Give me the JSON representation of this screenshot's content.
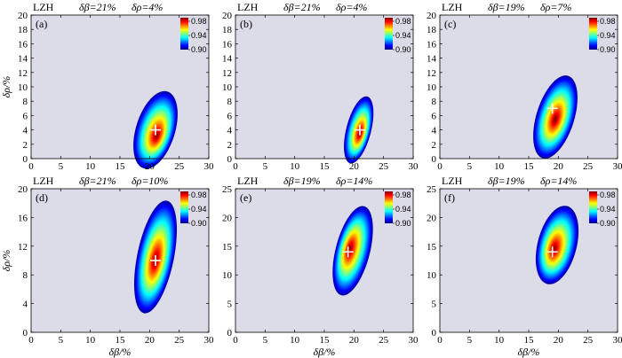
{
  "chart_data": {
    "type": "heatmap",
    "colors": {
      "background": "#dcdbe8",
      "marker": "#ffffff",
      "colormap": [
        "#00007f",
        "#0000ff",
        "#007fff",
        "#00ffff",
        "#7fff7f",
        "#ffff00",
        "#ff7f00",
        "#ff0000",
        "#7f0000"
      ]
    },
    "colorbar": {
      "ticks": [
        "0.98",
        "0.94",
        "0.90"
      ],
      "range": [
        0.9,
        0.99
      ]
    },
    "x_axis_label": "δβ/%",
    "y_axis_label": "δρ/%",
    "panels": [
      {
        "id": "a",
        "letter": "(a)",
        "station": "LZH",
        "header_beta": "δβ=21%",
        "header_rho": "δρ=4%",
        "best_beta": 21,
        "best_rho": 4,
        "xlim": [
          0,
          30
        ],
        "ylim": [
          0,
          20
        ],
        "xticks": [
          "0",
          "5",
          "10",
          "15",
          "20",
          "25",
          "30"
        ],
        "yticks": [
          "0",
          "2",
          "4",
          "6",
          "8",
          "10",
          "12",
          "14",
          "16",
          "18",
          "20"
        ],
        "show_ylabel": true,
        "show_xlabel": false,
        "blob": {
          "cx": 21,
          "cy": 4,
          "rx": 3.3,
          "ry": 5.6,
          "rot": 0.3,
          "hx": 21.2,
          "hy": 3.2
        }
      },
      {
        "id": "b",
        "letter": "(b)",
        "station": "LZH",
        "header_beta": "δβ=21%",
        "header_rho": "δρ=4%",
        "best_beta": 21,
        "best_rho": 4,
        "xlim": [
          0,
          30
        ],
        "ylim": [
          0,
          20
        ],
        "xticks": [
          "0",
          "5",
          "10",
          "15",
          "20",
          "25",
          "30"
        ],
        "yticks": [
          "0",
          "2",
          "4",
          "6",
          "8",
          "10",
          "12",
          "14",
          "16",
          "18",
          "20"
        ],
        "show_ylabel": false,
        "show_xlabel": false,
        "blob": {
          "cx": 20.8,
          "cy": 4,
          "rx": 2.1,
          "ry": 4.8,
          "rot": 0.25,
          "hx": 21,
          "hy": 3.5
        }
      },
      {
        "id": "c",
        "letter": "(c)",
        "station": "LZH",
        "header_beta": "δβ=19%",
        "header_rho": "δρ=7%",
        "best_beta": 19,
        "best_rho": 7,
        "xlim": [
          0,
          30
        ],
        "ylim": [
          0,
          20
        ],
        "xticks": [
          "0",
          "5",
          "10",
          "15",
          "20",
          "25",
          "30"
        ],
        "yticks": [
          "0",
          "2",
          "4",
          "6",
          "8",
          "10",
          "12",
          "14",
          "16",
          "18",
          "20"
        ],
        "show_ylabel": false,
        "show_xlabel": false,
        "blob": {
          "cx": 19.5,
          "cy": 5.8,
          "rx": 3.2,
          "ry": 6.0,
          "rot": 0.3,
          "hx": 19.5,
          "hy": 5.5
        }
      },
      {
        "id": "d",
        "letter": "(d)",
        "station": "LZH",
        "header_beta": "δβ=21%",
        "header_rho": "δρ=10%",
        "best_beta": 21,
        "best_rho": 10,
        "xlim": [
          0,
          30
        ],
        "ylim": [
          0,
          20
        ],
        "xticks": [
          "0",
          "5",
          "10",
          "15",
          "20",
          "25",
          "30"
        ],
        "yticks": [
          "0",
          "4",
          "8",
          "12",
          "16",
          "20"
        ],
        "show_ylabel": true,
        "show_xlabel": true,
        "blob": {
          "cx": 21,
          "cy": 10.5,
          "rx": 3.1,
          "ry": 8.0,
          "rot": 0.2,
          "hx": 21,
          "hy": 10
        }
      },
      {
        "id": "e",
        "letter": "(e)",
        "station": "LZH",
        "header_beta": "δβ=19%",
        "header_rho": "δρ=14%",
        "best_beta": 19,
        "best_rho": 14,
        "xlim": [
          0,
          30
        ],
        "ylim": [
          0,
          25
        ],
        "xticks": [
          "0",
          "5",
          "10",
          "15",
          "20",
          "25",
          "30"
        ],
        "yticks": [
          "0",
          "5",
          "10",
          "15",
          "20",
          "25"
        ],
        "show_ylabel": false,
        "show_xlabel": true,
        "blob": {
          "cx": 19.8,
          "cy": 14.2,
          "rx": 2.9,
          "ry": 8.0,
          "rot": 0.25,
          "hx": 19.3,
          "hy": 14.5
        }
      },
      {
        "id": "f",
        "letter": "(f)",
        "station": "LZH",
        "header_beta": "δβ=19%",
        "header_rho": "δρ=14%",
        "best_beta": 19,
        "best_rho": 14,
        "xlim": [
          0,
          30
        ],
        "ylim": [
          0,
          25
        ],
        "xticks": [
          "0",
          "5",
          "10",
          "15",
          "20",
          "25",
          "30"
        ],
        "yticks": [
          "0",
          "5",
          "10",
          "15",
          "20",
          "25"
        ],
        "show_ylabel": false,
        "show_xlabel": true,
        "blob": {
          "cx": 19.8,
          "cy": 15.2,
          "rx": 3.3,
          "ry": 7.0,
          "rot": 0.25,
          "hx": 19.3,
          "hy": 14.5
        }
      }
    ]
  }
}
